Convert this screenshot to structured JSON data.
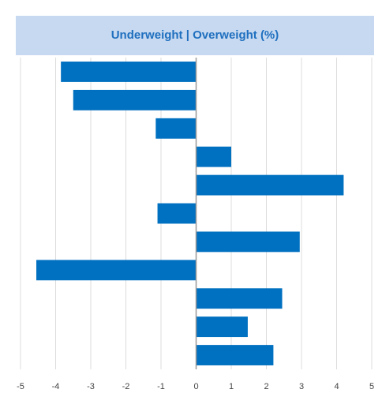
{
  "chart_data": {
    "type": "barh",
    "title": "Underweight | Overweight (%)",
    "values": [
      -3.85,
      -3.5,
      -1.15,
      1.0,
      4.2,
      -1.1,
      2.95,
      -4.55,
      2.45,
      1.47,
      2.2
    ],
    "color": "#0070c0",
    "xlim": [
      -5,
      5
    ],
    "xticks": [
      -5,
      -4,
      -3,
      -2,
      -1,
      0,
      1,
      2,
      3,
      4,
      5
    ],
    "grid": true
  }
}
